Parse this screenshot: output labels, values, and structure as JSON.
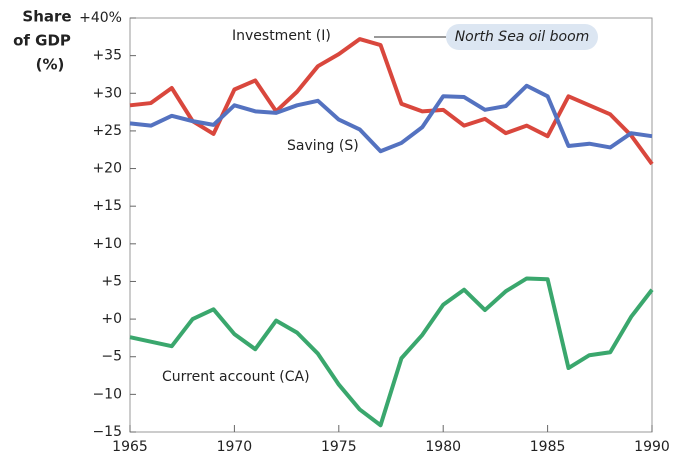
{
  "chart_data": {
    "type": "line",
    "ylabel_lines": [
      "Share",
      "of GDP",
      "(%)"
    ],
    "x": [
      1965,
      1966,
      1967,
      1968,
      1969,
      1970,
      1971,
      1972,
      1973,
      1974,
      1975,
      1976,
      1977,
      1978,
      1979,
      1980,
      1981,
      1982,
      1983,
      1984,
      1985,
      1986,
      1987,
      1988,
      1989,
      1990
    ],
    "xlim": [
      1965,
      1990
    ],
    "xticks": [
      1965,
      1970,
      1975,
      1980,
      1985,
      1990
    ],
    "ylim": [
      -15,
      40
    ],
    "yticks": [
      {
        "value": 40,
        "label": "+40%"
      },
      {
        "value": 35,
        "label": "+35"
      },
      {
        "value": 30,
        "label": "+30"
      },
      {
        "value": 25,
        "label": "+25"
      },
      {
        "value": 20,
        "label": "+20"
      },
      {
        "value": 15,
        "label": "+15"
      },
      {
        "value": 10,
        "label": "+10"
      },
      {
        "value": 5,
        "label": "+5"
      },
      {
        "value": 0,
        "label": "+0"
      },
      {
        "value": -5,
        "label": "−5"
      },
      {
        "value": -10,
        "label": "−10"
      },
      {
        "value": -15,
        "label": "−15"
      }
    ],
    "grid": false,
    "series": [
      {
        "name": "Investment (I)",
        "color": "#d9473d",
        "values": [
          28.4,
          28.7,
          30.7,
          26.3,
          24.6,
          30.5,
          31.7,
          27.6,
          30.2,
          33.6,
          35.2,
          37.2,
          36.4,
          28.6,
          27.6,
          27.8,
          25.7,
          26.6,
          24.7,
          25.7,
          24.3,
          29.6,
          28.4,
          27.2,
          24.4,
          20.6
        ]
      },
      {
        "name": "Saving (S)",
        "color": "#5472c0",
        "values": [
          26.0,
          25.7,
          27.0,
          26.3,
          25.8,
          28.4,
          27.6,
          27.4,
          28.4,
          29.0,
          26.5,
          25.2,
          22.3,
          23.4,
          25.5,
          29.6,
          29.5,
          27.8,
          28.3,
          31.0,
          29.6,
          23.0,
          23.3,
          22.8,
          24.7,
          24.3
        ]
      },
      {
        "name": "Current account (CA)",
        "color": "#3aa76d",
        "values": [
          -2.4,
          -3.0,
          -3.6,
          0.0,
          1.3,
          -2.0,
          -4.0,
          -0.2,
          -1.8,
          -4.6,
          -8.7,
          -12.0,
          -14.1,
          -5.2,
          -2.1,
          1.9,
          3.9,
          1.2,
          3.7,
          5.4,
          5.3,
          -6.5,
          -4.8,
          -4.4,
          0.3,
          3.9
        ]
      }
    ],
    "annotations": [
      "North Sea oil boom"
    ]
  }
}
